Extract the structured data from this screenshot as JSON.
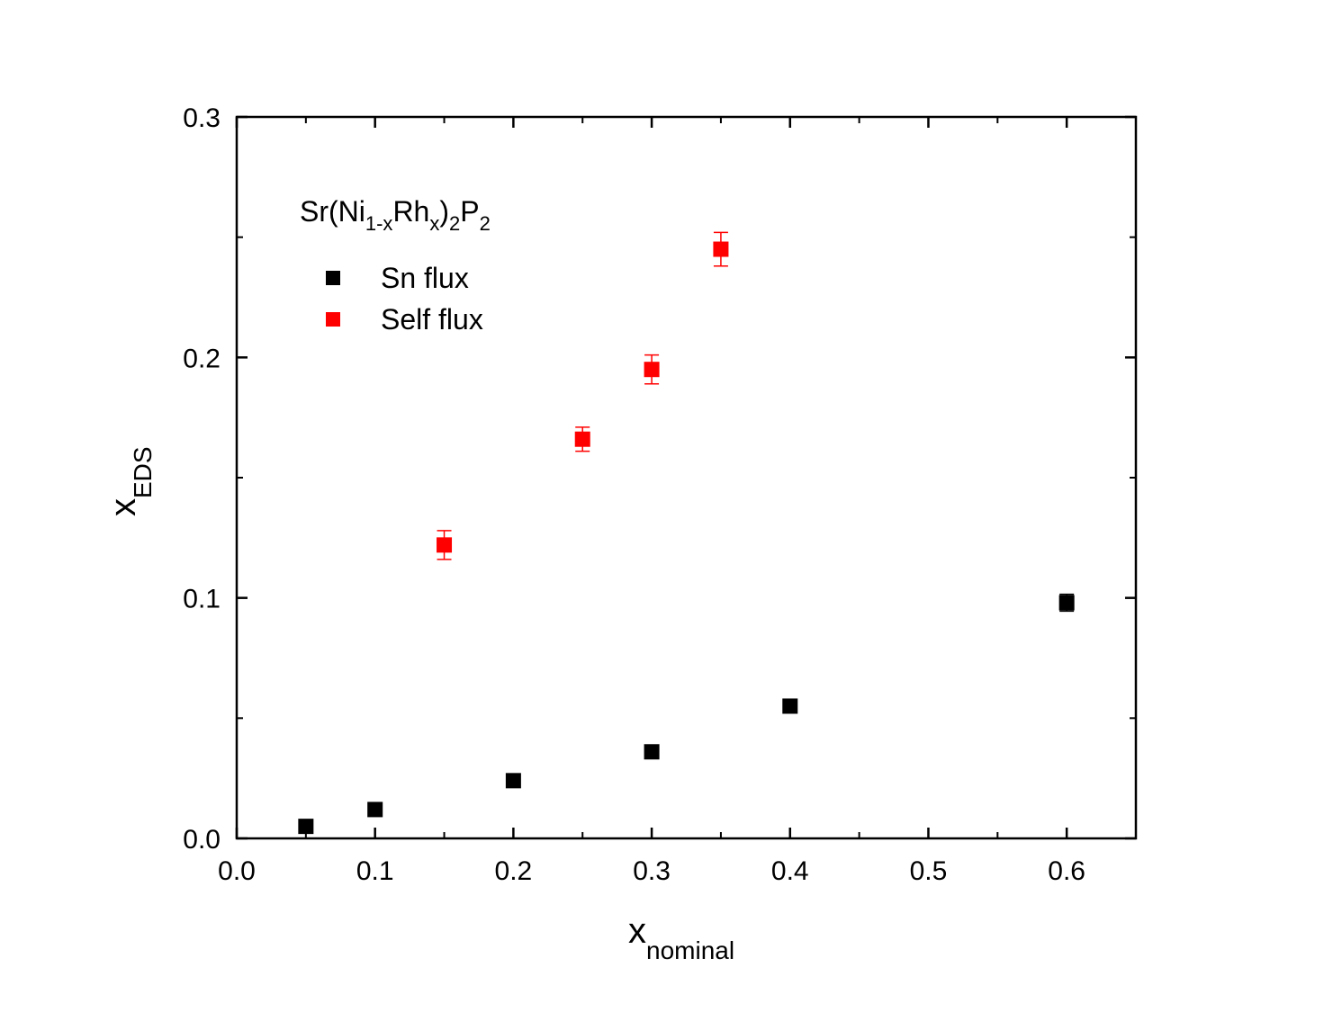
{
  "chart_data": {
    "type": "scatter",
    "title": "",
    "xlabel": "x",
    "xlabel_sub": "nominal",
    "ylabel": "x",
    "ylabel_sub": "EDS",
    "xlim": [
      0.0,
      0.65
    ],
    "ylim": [
      0.0,
      0.3
    ],
    "x_ticks": [
      0.0,
      0.1,
      0.2,
      0.3,
      0.4,
      0.5,
      0.6
    ],
    "x_tick_labels": [
      "0.0",
      "0.1",
      "0.2",
      "0.3",
      "0.4",
      "0.5",
      "0.6"
    ],
    "y_ticks": [
      0.0,
      0.1,
      0.2,
      0.3
    ],
    "y_tick_labels": [
      "0.0",
      "0.1",
      "0.2",
      "0.3"
    ],
    "x_minor_ticks": [
      0.05,
      0.15,
      0.25,
      0.35,
      0.45,
      0.55,
      0.65
    ],
    "y_minor_ticks": [
      0.05,
      0.15,
      0.25
    ],
    "grid": false,
    "legend_position": "top-left",
    "annotation": {
      "parts": [
        {
          "text": "Sr(Ni",
          "sub": false
        },
        {
          "text": "1-x",
          "sub": true
        },
        {
          "text": "Rh",
          "sub": false
        },
        {
          "text": "x",
          "sub": true
        },
        {
          "text": ")",
          "sub": false
        },
        {
          "text": "2",
          "sub": true
        },
        {
          "text": "P",
          "sub": false
        },
        {
          "text": "2",
          "sub": true
        }
      ]
    },
    "series": [
      {
        "name": "Sn flux",
        "color": "#000000",
        "marker": "square",
        "x": [
          0.05,
          0.1,
          0.2,
          0.3,
          0.4,
          0.6
        ],
        "y": [
          0.005,
          0.012,
          0.024,
          0.036,
          0.055,
          0.098
        ],
        "yerr": [
          0.0,
          0.0,
          0.0,
          0.0,
          0.0,
          0.0035
        ]
      },
      {
        "name": "Self flux",
        "color": "#ff0000",
        "marker": "square",
        "x": [
          0.15,
          0.25,
          0.3,
          0.35
        ],
        "y": [
          0.122,
          0.166,
          0.195,
          0.245
        ],
        "yerr": [
          0.006,
          0.005,
          0.006,
          0.007
        ]
      }
    ]
  }
}
